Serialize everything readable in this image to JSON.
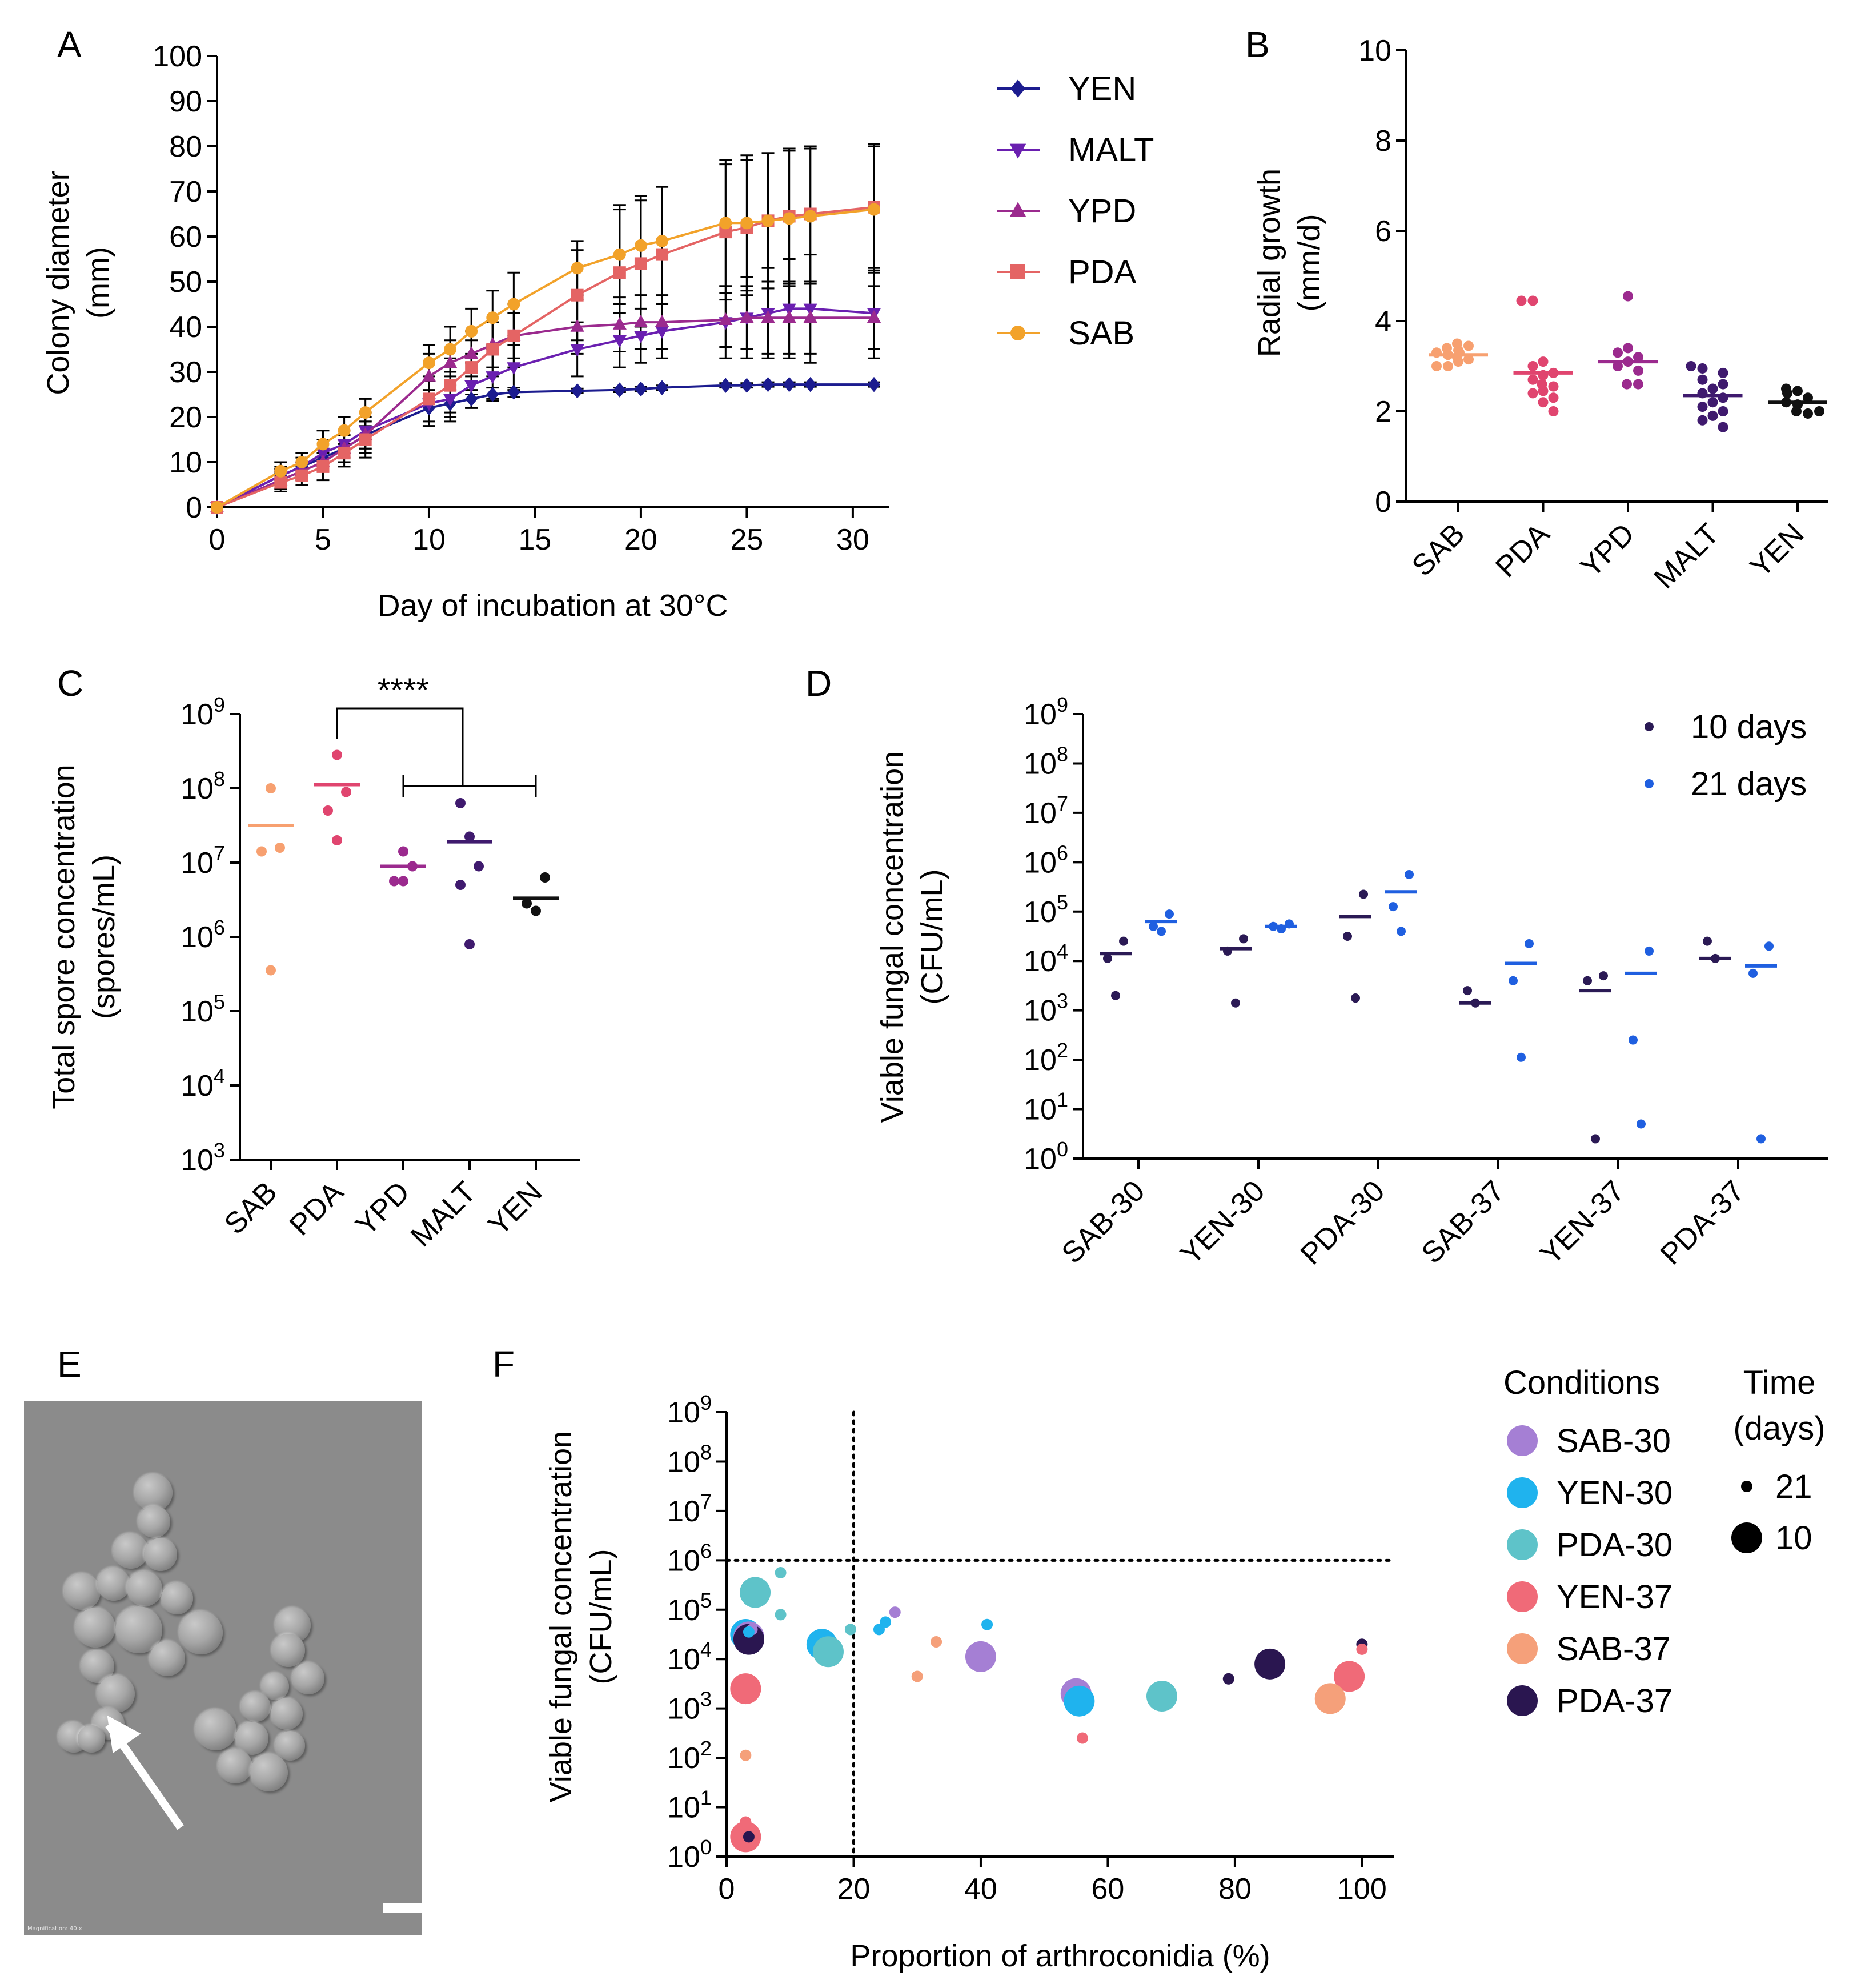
{
  "panels": {
    "A": "A",
    "B": "B",
    "C": "C",
    "D": "D",
    "E": "E",
    "F": "F"
  },
  "chart_data": [
    {
      "id": "A",
      "type": "line",
      "xlabel": "Day of incubation at 30°C",
      "ylabel": [
        "Colony diameter",
        "(mm)"
      ],
      "xlim": [
        0,
        31
      ],
      "ylim": [
        0,
        100
      ],
      "x_ticks": [
        "0",
        "5",
        "10",
        "15",
        "20",
        "25",
        "30"
      ],
      "y_ticks": [
        "0",
        "10",
        "20",
        "30",
        "40",
        "50",
        "60",
        "70",
        "80",
        "90",
        "100"
      ],
      "x": [
        0,
        3,
        4,
        5,
        6,
        7,
        10,
        11,
        12,
        13,
        14,
        17,
        19,
        20,
        21,
        24,
        25,
        26,
        27,
        28,
        31
      ],
      "series": [
        {
          "name": "YEN",
          "color": "#1c1c8f",
          "marker": "diamond",
          "values": [
            0,
            7,
            9,
            11,
            13,
            16,
            22,
            23,
            24,
            25,
            25.5,
            25.8,
            26,
            26.2,
            26.5,
            27,
            27,
            27.2,
            27.2,
            27.2,
            27.2
          ],
          "err": [
            0,
            1.5,
            2,
            2,
            2,
            3,
            4,
            3,
            2,
            1.5,
            1,
            0.5,
            0.5,
            0.5,
            0.5,
            0.5,
            0.5,
            0.5,
            0.5,
            0.5,
            0.5
          ]
        },
        {
          "name": "MALT",
          "color": "#6a1fb0",
          "marker": "triangle-down",
          "values": [
            0,
            7,
            9,
            12,
            14,
            17,
            23,
            24,
            27,
            29,
            31,
            35,
            37,
            38,
            39,
            41,
            42,
            43,
            44,
            44,
            43
          ],
          "err": [
            0,
            2,
            3,
            3,
            3,
            4,
            5,
            5,
            5,
            5,
            5,
            6,
            6,
            6,
            6,
            8,
            9,
            10,
            11,
            12,
            10
          ]
        },
        {
          "name": "YPD",
          "color": "#9b2a8e",
          "marker": "triangle-up",
          "values": [
            0,
            6,
            8,
            10,
            13,
            16,
            29,
            32,
            34,
            36,
            38,
            40,
            40.5,
            41,
            41,
            41.5,
            42,
            42,
            42,
            42,
            42
          ],
          "err": [
            0,
            2,
            2,
            2,
            3,
            4,
            5,
            5,
            5,
            5,
            5,
            6,
            6,
            6,
            6,
            6,
            7,
            8,
            8,
            8,
            7
          ]
        },
        {
          "name": "PDA",
          "color": "#e46464",
          "marker": "square",
          "values": [
            0,
            5.5,
            7,
            9,
            12,
            15,
            24,
            27,
            31,
            35,
            38,
            47,
            52,
            54,
            56,
            61,
            62,
            63.5,
            64.5,
            65,
            66.5
          ],
          "err": [
            0,
            2,
            2,
            3,
            3,
            4,
            5,
            6,
            6,
            6,
            7,
            10,
            14,
            14,
            15,
            15,
            15,
            15,
            15,
            15,
            14
          ]
        },
        {
          "name": "SAB",
          "color": "#f2a22a",
          "marker": "circle",
          "values": [
            0,
            8,
            10,
            14,
            17,
            21,
            32,
            35,
            39,
            42,
            45,
            53,
            56,
            58,
            59,
            63,
            63,
            63.5,
            64,
            64.5,
            66
          ],
          "err": [
            0,
            2,
            2,
            3,
            3,
            3,
            4,
            5,
            5,
            6,
            7,
            6,
            11,
            11,
            12,
            14,
            15,
            15,
            15,
            15,
            14
          ]
        }
      ]
    },
    {
      "id": "B",
      "type": "scatter",
      "ylabel": [
        "Radial growth",
        "(mm/d)"
      ],
      "ylim": [
        0,
        10
      ],
      "y_ticks": [
        "0",
        "2",
        "4",
        "6",
        "8",
        "10"
      ],
      "categories": [
        "SAB",
        "PDA",
        "YPD",
        "MALT",
        "YEN"
      ],
      "colors": [
        "#f7a070",
        "#e0456f",
        "#9b2a8e",
        "#3f1a6e",
        "#111111"
      ],
      "means": [
        3.25,
        2.85,
        3.1,
        2.35,
        2.2
      ],
      "points": [
        [
          3.0,
          3.0,
          3.1,
          3.15,
          3.2,
          3.25,
          3.3,
          3.3,
          3.35,
          3.4,
          3.45,
          3.5
        ],
        [
          2.0,
          2.2,
          2.3,
          2.4,
          2.45,
          2.55,
          2.6,
          2.7,
          2.8,
          2.85,
          3.0,
          3.1,
          4.45,
          4.45
        ],
        [
          2.6,
          2.6,
          2.9,
          3.0,
          3.1,
          3.2,
          3.3,
          3.4,
          4.55
        ],
        [
          1.65,
          1.8,
          1.9,
          2.0,
          2.1,
          2.2,
          2.3,
          2.4,
          2.5,
          2.6,
          2.7,
          2.85,
          2.95,
          3.0
        ],
        [
          1.95,
          2.0,
          2.0,
          2.15,
          2.2,
          2.3,
          2.4,
          2.45,
          2.5
        ]
      ]
    },
    {
      "id": "C",
      "type": "scatter",
      "ylabel": [
        "Total spore concentration",
        "(spores/mL)"
      ],
      "ylim_log10": [
        3,
        9
      ],
      "y_ticks": [
        {
          "base": "10",
          "exp": "3"
        },
        {
          "base": "10",
          "exp": "4"
        },
        {
          "base": "10",
          "exp": "5"
        },
        {
          "base": "10",
          "exp": "6"
        },
        {
          "base": "10",
          "exp": "7"
        },
        {
          "base": "10",
          "exp": "8"
        },
        {
          "base": "10",
          "exp": "9"
        }
      ],
      "categories": [
        "SAB",
        "PDA",
        "YPD",
        "MALT",
        "YEN"
      ],
      "colors": [
        "#f7a070",
        "#e0456f",
        "#9b2a8e",
        "#3f1a6e",
        "#111111"
      ],
      "means_log10": [
        7.5,
        8.05,
        6.95,
        7.28,
        6.52
      ],
      "points_log10": [
        [
          5.55,
          7.15,
          7.2,
          8.0
        ],
        [
          7.3,
          7.7,
          7.95,
          8.45
        ],
        [
          6.75,
          6.75,
          6.95,
          7.15
        ],
        [
          5.9,
          6.7,
          6.95,
          7.35,
          7.8
        ],
        [
          6.35,
          6.45,
          6.8
        ]
      ],
      "significance": "****"
    },
    {
      "id": "D",
      "type": "scatter",
      "ylabel": [
        "Viable fungal concentration",
        "(CFU/mL)"
      ],
      "ylim_log10": [
        0,
        9
      ],
      "y_ticks": [
        {
          "base": "10",
          "exp": "0"
        },
        {
          "base": "10",
          "exp": "1"
        },
        {
          "base": "10",
          "exp": "2"
        },
        {
          "base": "10",
          "exp": "3"
        },
        {
          "base": "10",
          "exp": "4"
        },
        {
          "base": "10",
          "exp": "5"
        },
        {
          "base": "10",
          "exp": "6"
        },
        {
          "base": "10",
          "exp": "7"
        },
        {
          "base": "10",
          "exp": "8"
        },
        {
          "base": "10",
          "exp": "9"
        }
      ],
      "categories": [
        "SAB-30",
        "YEN-30",
        "PDA-30",
        "SAB-37",
        "YEN-37",
        "PDA-37"
      ],
      "series": [
        {
          "name": "10 days",
          "color": "#2b1a55",
          "means_log10": [
            4.15,
            4.25,
            4.9,
            3.15,
            3.4,
            4.05
          ],
          "points_log10": [
            [
              3.3,
              4.05,
              4.4
            ],
            [
              3.15,
              4.2,
              4.45
            ],
            [
              3.25,
              4.5,
              5.35
            ],
            [
              3.15,
              3.4
            ],
            [
              0.4,
              3.6,
              3.7
            ],
            [
              4.05,
              4.4
            ]
          ]
        },
        {
          "name": "21 days",
          "color": "#1f5fe0",
          "means_log10": [
            4.8,
            4.7,
            5.4,
            3.95,
            3.75,
            3.9
          ],
          "points_log10": [
            [
              4.6,
              4.7,
              4.95
            ],
            [
              4.65,
              4.7,
              4.75
            ],
            [
              4.6,
              5.1,
              5.75
            ],
            [
              2.05,
              3.6,
              4.35
            ],
            [
              0.7,
              2.4,
              4.2
            ],
            [
              0.4,
              3.75,
              4.3
            ]
          ]
        }
      ]
    },
    {
      "id": "F",
      "type": "scatter",
      "xlabel": "Proportion of arthroconidia (%)",
      "ylabel": [
        "Viable fungal concentration",
        "(CFU/mL)"
      ],
      "xlim": [
        0,
        105
      ],
      "ylim_log10": [
        0,
        9
      ],
      "x_ticks": [
        "0",
        "20",
        "40",
        "60",
        "80",
        "100"
      ],
      "y_ticks": [
        {
          "base": "10",
          "exp": "0"
        },
        {
          "base": "10",
          "exp": "1"
        },
        {
          "base": "10",
          "exp": "2"
        },
        {
          "base": "10",
          "exp": "3"
        },
        {
          "base": "10",
          "exp": "4"
        },
        {
          "base": "10",
          "exp": "5"
        },
        {
          "base": "10",
          "exp": "6"
        },
        {
          "base": "10",
          "exp": "7"
        },
        {
          "base": "10",
          "exp": "8"
        },
        {
          "base": "10",
          "exp": "9"
        }
      ],
      "threshold_x": 20,
      "threshold_y_log10": 6,
      "conditions": [
        {
          "name": "SAB-30",
          "color": "#a57fd4"
        },
        {
          "name": "YEN-30",
          "color": "#1fb3ee"
        },
        {
          "name": "PDA-30",
          "color": "#5ec3c9"
        },
        {
          "name": "YEN-37",
          "color": "#f06a78"
        },
        {
          "name": "SAB-37",
          "color": "#f5a07a"
        },
        {
          "name": "PDA-37",
          "color": "#2a1650"
        }
      ],
      "points": [
        {
          "cond": "PDA-30",
          "days": 10,
          "x": 4.5,
          "y": 5.35
        },
        {
          "cond": "YEN-30",
          "days": 10,
          "x": 3,
          "y": 4.5
        },
        {
          "cond": "SAB-30",
          "days": 10,
          "x": 3.5,
          "y": 4.45
        },
        {
          "cond": "PDA-37",
          "days": 10,
          "x": 3.5,
          "y": 4.4
        },
        {
          "cond": "YEN-37",
          "days": 10,
          "x": 3,
          "y": 3.4
        },
        {
          "cond": "YEN-37",
          "days": 10,
          "x": 3,
          "y": 0.4
        },
        {
          "cond": "YEN-30",
          "days": 10,
          "x": 15,
          "y": 4.3
        },
        {
          "cond": "PDA-30",
          "days": 10,
          "x": 16,
          "y": 4.15
        },
        {
          "cond": "SAB-30",
          "days": 10,
          "x": 40,
          "y": 4.05
        },
        {
          "cond": "SAB-30",
          "days": 10,
          "x": 55,
          "y": 3.3
        },
        {
          "cond": "YEN-30",
          "days": 10,
          "x": 55.5,
          "y": 3.15
        },
        {
          "cond": "PDA-30",
          "days": 10,
          "x": 68.5,
          "y": 3.25
        },
        {
          "cond": "PDA-37",
          "days": 10,
          "x": 85.5,
          "y": 3.9
        },
        {
          "cond": "YEN-37",
          "days": 10,
          "x": 98,
          "y": 3.65
        },
        {
          "cond": "SAB-37",
          "days": 10,
          "x": 95,
          "y": 3.2
        },
        {
          "cond": "PDA-30",
          "days": 21,
          "x": 8.5,
          "y": 5.75
        },
        {
          "cond": "PDA-30",
          "days": 21,
          "x": 8.5,
          "y": 4.9
        },
        {
          "cond": "SAB-30",
          "days": 21,
          "x": 4,
          "y": 4.6
        },
        {
          "cond": "YEN-30",
          "days": 21,
          "x": 3.5,
          "y": 4.55
        },
        {
          "cond": "SAB-37",
          "days": 21,
          "x": 3,
          "y": 2.05
        },
        {
          "cond": "PDA-37",
          "days": 21,
          "x": 3.5,
          "y": 0.4
        },
        {
          "cond": "YEN-37",
          "days": 21,
          "x": 3,
          "y": 0.7
        },
        {
          "cond": "PDA-30",
          "days": 21,
          "x": 19.5,
          "y": 4.6
        },
        {
          "cond": "YEN-30",
          "days": 21,
          "x": 24,
          "y": 4.6
        },
        {
          "cond": "YEN-30",
          "days": 21,
          "x": 25,
          "y": 4.75
        },
        {
          "cond": "SAB-30",
          "days": 21,
          "x": 26.5,
          "y": 4.95
        },
        {
          "cond": "SAB-37",
          "days": 21,
          "x": 33,
          "y": 4.35
        },
        {
          "cond": "YEN-30",
          "days": 21,
          "x": 41,
          "y": 4.7
        },
        {
          "cond": "SAB-37",
          "days": 21,
          "x": 30,
          "y": 3.65
        },
        {
          "cond": "YEN-37",
          "days": 21,
          "x": 56,
          "y": 2.4
        },
        {
          "cond": "PDA-37",
          "days": 21,
          "x": 79,
          "y": 3.6
        },
        {
          "cond": "PDA-37",
          "days": 21,
          "x": 100,
          "y": 4.3
        },
        {
          "cond": "YEN-37",
          "days": 21,
          "x": 100,
          "y": 4.2
        }
      ],
      "legend_title": "Conditions",
      "size_legend_title": [
        "Time",
        "(days)"
      ],
      "size_legend": [
        {
          "label": "21",
          "days": 21
        },
        {
          "label": "10",
          "days": 10
        }
      ]
    }
  ],
  "micrograph": {
    "caption": "Magnification: 40 x"
  }
}
